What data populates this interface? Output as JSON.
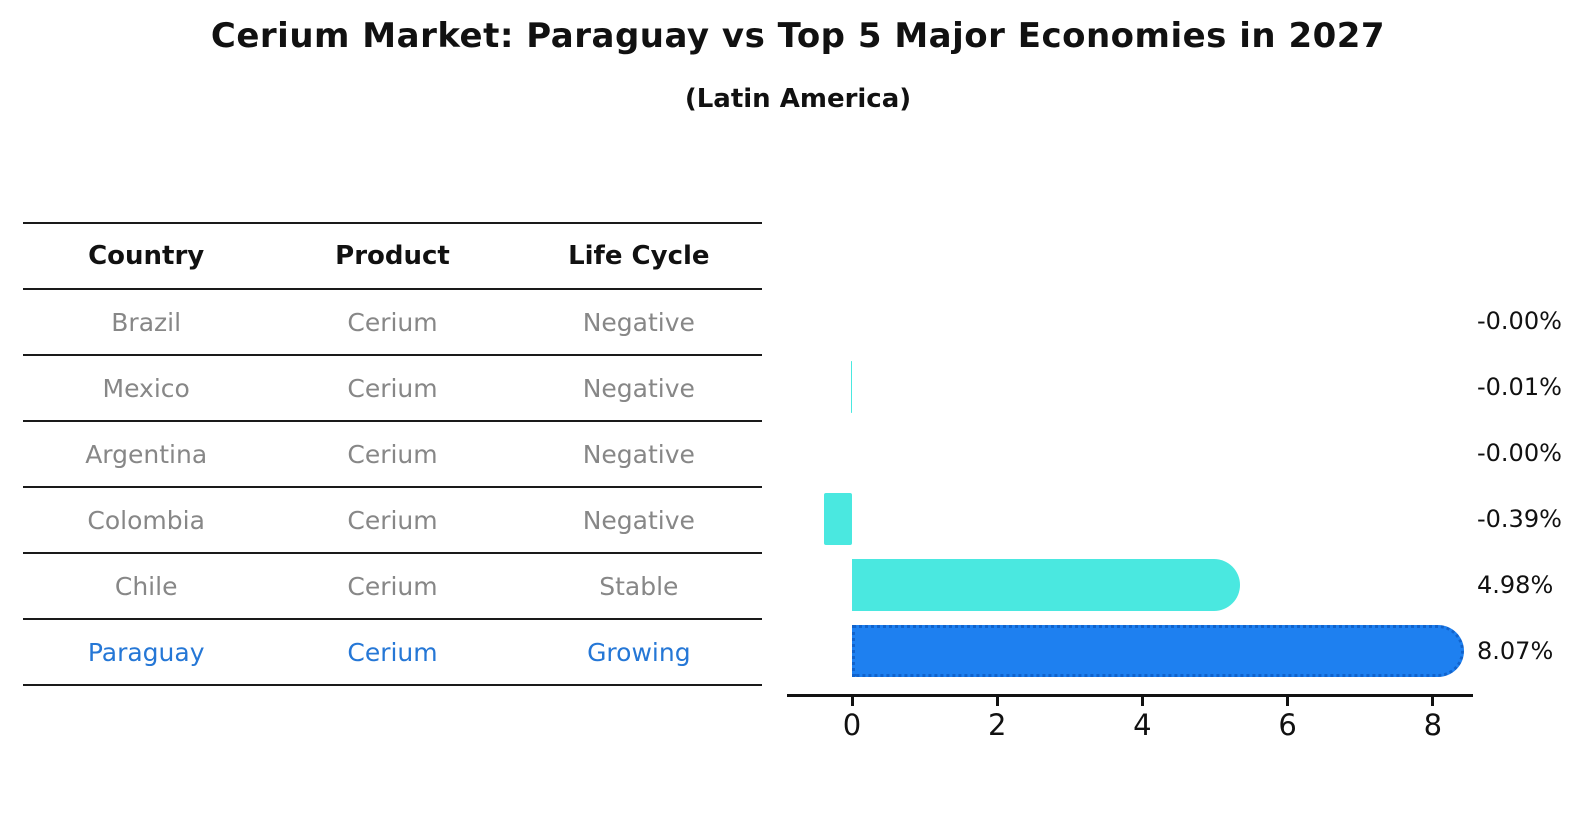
{
  "title": "Cerium Market: Paraguay vs Top 5 Major Economies in 2027",
  "subtitle": "(Latin America)",
  "table": {
    "headers": [
      "Country",
      "Product",
      "Life Cycle"
    ],
    "rows": [
      {
        "country": "Brazil",
        "product": "Cerium",
        "life_cycle": "Negative",
        "highlight": false
      },
      {
        "country": "Mexico",
        "product": "Cerium",
        "life_cycle": "Negative",
        "highlight": false
      },
      {
        "country": "Argentina",
        "product": "Cerium",
        "life_cycle": "Negative",
        "highlight": false
      },
      {
        "country": "Colombia",
        "product": "Cerium",
        "life_cycle": "Negative",
        "highlight": false
      },
      {
        "country": "Chile",
        "product": "Cerium",
        "life_cycle": "Stable",
        "highlight": false
      },
      {
        "country": "Paraguay",
        "product": "Cerium",
        "life_cycle": "Growing",
        "highlight": true
      }
    ]
  },
  "chart_data": {
    "type": "bar",
    "orientation": "horizontal",
    "title": "Cerium Market: Paraguay vs Top 5 Major Economies in 2027",
    "subtitle": "(Latin America)",
    "categories": [
      "Brazil",
      "Mexico",
      "Argentina",
      "Colombia",
      "Chile",
      "Paraguay"
    ],
    "values": [
      -0.0,
      -0.01,
      -0.0,
      -0.39,
      4.98,
      8.07
    ],
    "value_labels": [
      "-0.00%",
      "-0.01%",
      "-0.00%",
      "-0.39%",
      "4.98%",
      "8.07%"
    ],
    "unit": "%",
    "x_ticks": [
      0,
      2,
      4,
      6,
      8
    ],
    "xlim": [
      -0.9,
      8.55
    ],
    "grid": false,
    "legend": "none",
    "highlight_index": 5,
    "colors": {
      "default_bar": "#4AE8E0",
      "highlight_bar": "#1E80F0",
      "highlight_edge": "#1060C8",
      "highlight_text": "#2577D6",
      "row_text": "#878787",
      "header_text": "#111111",
      "axis": "#111111"
    }
  }
}
